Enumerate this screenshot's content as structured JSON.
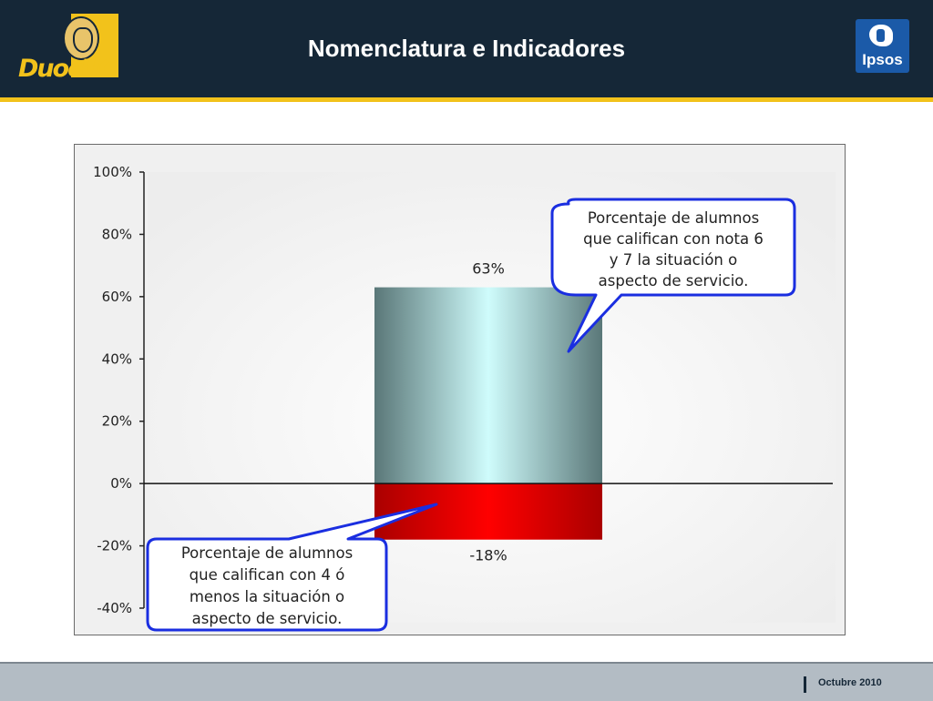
{
  "header": {
    "title": "Nomenclatura e Indicadores",
    "logo_left_text": "DuocUC",
    "logo_right_text": "Ipsos"
  },
  "colors": {
    "header_bg": "#152737",
    "accent": "#f2c21b",
    "positive_bar": "#cffcfc",
    "negative_bar": "#ff0000",
    "callout_border": "#1a2ee0"
  },
  "chart_data": {
    "type": "bar",
    "title": "",
    "xlabel": "",
    "ylabel": "",
    "ylim": [
      -40,
      100
    ],
    "yticks": [
      100,
      80,
      60,
      40,
      20,
      0,
      -20,
      -40
    ],
    "ytick_labels": [
      "100%",
      "80%",
      "60%",
      "40%",
      "20%",
      "0%",
      "-20%",
      "-40%"
    ],
    "grid": false,
    "series": [
      {
        "values": [
          63
        ],
        "data_label": "63%"
      },
      {
        "values": [
          -18
        ],
        "data_label": "-18%"
      }
    ],
    "annotations": [
      {
        "lines": [
          "Porcentaje de alumnos",
          "que califican con nota 6",
          "y 7 la situación o",
          "aspecto de servicio."
        ]
      },
      {
        "lines": [
          "Porcentaje de alumnos",
          "que califican con 4 ó",
          "menos la situación o",
          "aspecto de servicio."
        ]
      }
    ]
  },
  "footer": {
    "date": "Octubre 2010"
  }
}
